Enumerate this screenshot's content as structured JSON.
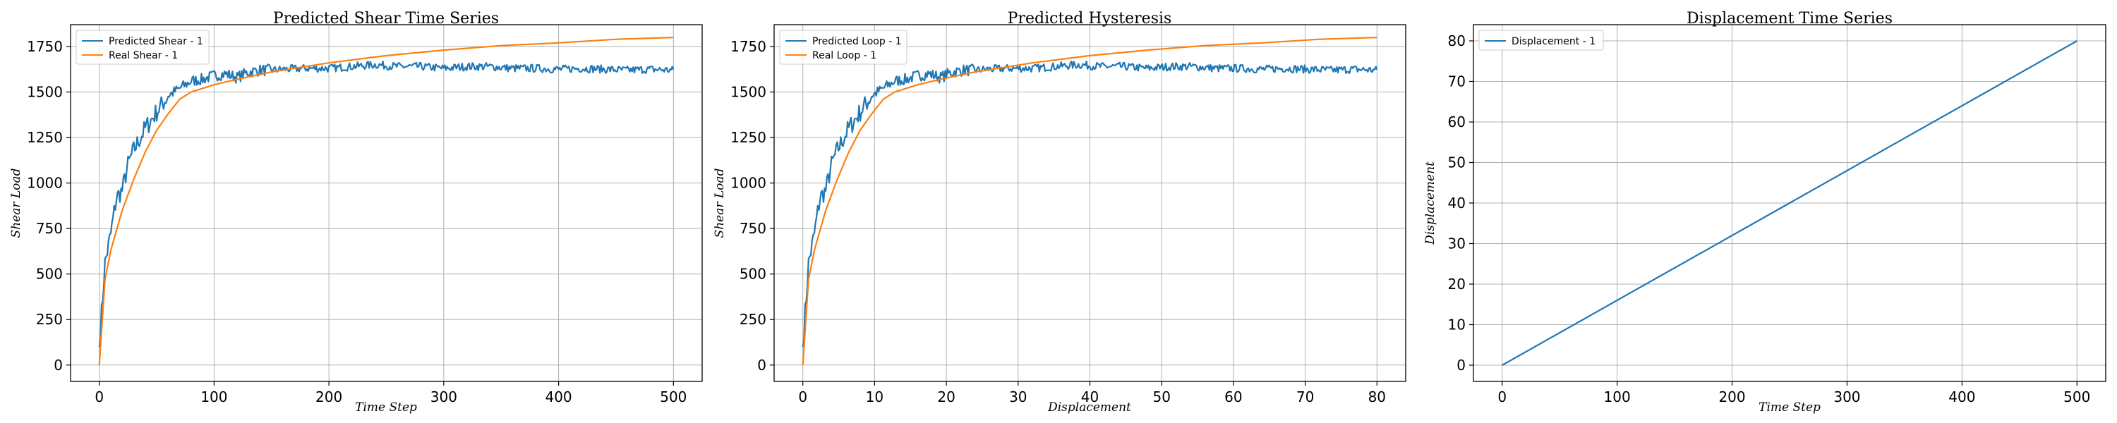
{
  "figure": {
    "colors": {
      "blue": "#1f77b4",
      "orange": "#ff7f0e",
      "grid": "#b0b0b0",
      "axis": "#000000"
    }
  },
  "chart_data": [
    {
      "type": "line",
      "title": "Predicted Shear Time Series",
      "xlabel": "Time Step",
      "ylabel": "Shear Load",
      "xlim": [
        -25,
        525
      ],
      "ylim": [
        -90,
        1870
      ],
      "xticks": [
        0,
        100,
        200,
        300,
        400,
        500
      ],
      "yticks": [
        0,
        250,
        500,
        750,
        1000,
        1250,
        1500,
        1750
      ],
      "grid": true,
      "legend": "top-left",
      "series": [
        {
          "name": "Predicted Shear - 1",
          "color": "#1f77b4",
          "style": "noisy",
          "x": [
            0,
            5,
            10,
            15,
            20,
            25,
            30,
            40,
            50,
            60,
            70,
            80,
            90,
            100,
            110,
            120,
            130,
            140,
            150,
            160,
            180,
            200,
            220,
            240,
            260,
            280,
            300,
            320,
            340,
            360,
            380,
            400,
            420,
            440,
            460,
            480,
            500
          ],
          "y": [
            100,
            560,
            720,
            920,
            960,
            1100,
            1180,
            1300,
            1390,
            1480,
            1520,
            1560,
            1570,
            1590,
            1600,
            1580,
            1610,
            1620,
            1620,
            1625,
            1630,
            1630,
            1640,
            1650,
            1640,
            1640,
            1630,
            1640,
            1640,
            1630,
            1630,
            1625,
            1630,
            1625,
            1620,
            1625,
            1620
          ]
        },
        {
          "name": "Real Shear - 1",
          "color": "#ff7f0e",
          "style": "smooth",
          "x": [
            0,
            5,
            10,
            20,
            30,
            40,
            50,
            60,
            70,
            80,
            100,
            120,
            150,
            200,
            250,
            300,
            350,
            400,
            450,
            500
          ],
          "y": [
            0,
            470,
            630,
            850,
            1020,
            1170,
            1290,
            1380,
            1460,
            1500,
            1540,
            1570,
            1610,
            1660,
            1700,
            1730,
            1755,
            1770,
            1790,
            1800
          ]
        }
      ]
    },
    {
      "type": "line",
      "title": "Predicted Hysteresis",
      "xlabel": "Displacement",
      "ylabel": "Shear Load",
      "xlim": [
        -4,
        84
      ],
      "ylim": [
        -90,
        1870
      ],
      "xticks": [
        0,
        10,
        20,
        30,
        40,
        50,
        60,
        70,
        80
      ],
      "yticks": [
        0,
        250,
        500,
        750,
        1000,
        1250,
        1500,
        1750
      ],
      "grid": true,
      "legend": "top-left",
      "series": [
        {
          "name": "Predicted Loop - 1",
          "color": "#1f77b4",
          "style": "noisy",
          "x": [
            0,
            0.8,
            1.6,
            2.4,
            3.2,
            4,
            4.8,
            6.4,
            8,
            9.6,
            11.2,
            12.8,
            14.4,
            16,
            17.6,
            19.2,
            20.8,
            22.4,
            24,
            25.6,
            28.8,
            32,
            35.2,
            38.4,
            41.6,
            44.8,
            48,
            51.2,
            54.4,
            57.6,
            60.8,
            64,
            67.2,
            70.4,
            73.6,
            76.8,
            80
          ],
          "y": [
            100,
            560,
            720,
            920,
            960,
            1100,
            1180,
            1300,
            1390,
            1480,
            1520,
            1560,
            1570,
            1590,
            1600,
            1580,
            1610,
            1620,
            1620,
            1625,
            1630,
            1630,
            1640,
            1650,
            1640,
            1640,
            1630,
            1640,
            1640,
            1630,
            1630,
            1625,
            1630,
            1625,
            1620,
            1625,
            1620
          ]
        },
        {
          "name": "Real Loop - 1",
          "color": "#ff7f0e",
          "style": "smooth",
          "x": [
            0,
            0.8,
            1.6,
            3.2,
            4.8,
            6.4,
            8,
            9.6,
            11.2,
            12.8,
            16,
            19.2,
            24,
            32,
            40,
            48,
            56,
            64,
            72,
            80
          ],
          "y": [
            0,
            470,
            630,
            850,
            1020,
            1170,
            1290,
            1380,
            1460,
            1500,
            1540,
            1570,
            1610,
            1660,
            1700,
            1730,
            1755,
            1770,
            1790,
            1800
          ]
        }
      ]
    },
    {
      "type": "line",
      "title": "Displacement Time Series",
      "xlabel": "Time Step",
      "ylabel": "Displacement",
      "xlim": [
        -25,
        525
      ],
      "ylim": [
        -4,
        84
      ],
      "xticks": [
        0,
        100,
        200,
        300,
        400,
        500
      ],
      "yticks": [
        0,
        10,
        20,
        30,
        40,
        50,
        60,
        70,
        80
      ],
      "grid": true,
      "legend": "top-left",
      "series": [
        {
          "name": "Displacement - 1",
          "color": "#1f77b4",
          "style": "smooth",
          "x": [
            0,
            500
          ],
          "y": [
            0,
            80
          ]
        }
      ]
    }
  ]
}
